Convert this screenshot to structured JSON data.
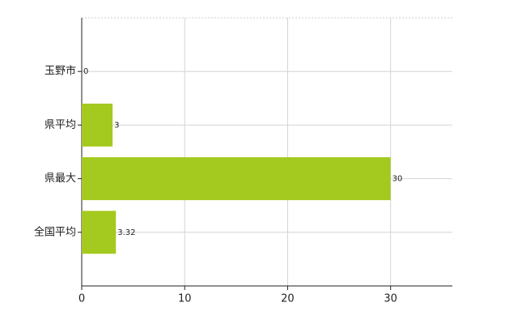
{
  "chart_data": {
    "type": "hbar",
    "categories": [
      "玉野市",
      "県平均",
      "県最大",
      "全国平均"
    ],
    "values": [
      0,
      3,
      30,
      3.32
    ],
    "color": "#a4c91f",
    "xlim": [
      0,
      36
    ],
    "xticks": [
      0,
      10,
      20,
      30
    ],
    "grid": true
  }
}
